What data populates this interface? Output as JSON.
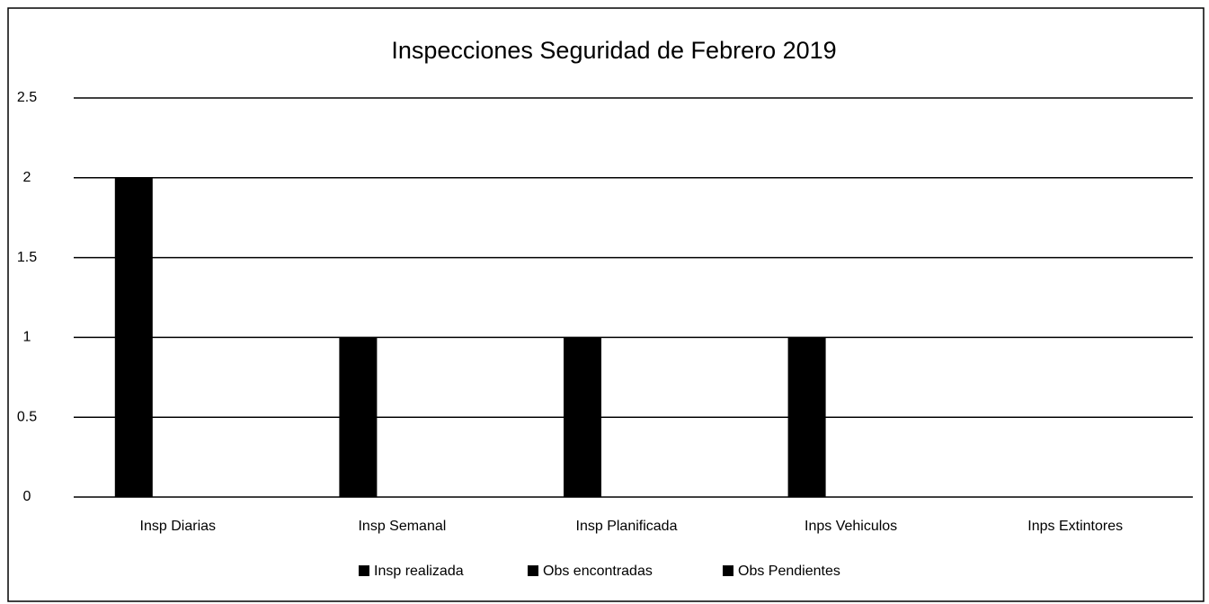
{
  "chart_data": {
    "type": "bar",
    "title": "Inspecciones Seguridad de Febrero 2019",
    "categories": [
      "Insp Diarias",
      "Insp Semanal",
      "Insp Planificada",
      "Inps Vehiculos",
      "Inps Extintores"
    ],
    "series": [
      {
        "name": "Insp realizada",
        "color": "#000000",
        "values": [
          2,
          1,
          1,
          1,
          0
        ]
      },
      {
        "name": "Obs encontradas",
        "color": "#000000",
        "values": [
          0,
          0,
          0,
          0,
          0
        ]
      },
      {
        "name": "Obs Pendientes",
        "color": "#000000",
        "values": [
          0,
          0,
          0,
          0,
          0
        ]
      }
    ],
    "ylim": [
      0,
      2.5
    ],
    "yticks": [
      0,
      0.5,
      1,
      1.5,
      2,
      2.5
    ],
    "grid": true,
    "legend": "bottom"
  }
}
